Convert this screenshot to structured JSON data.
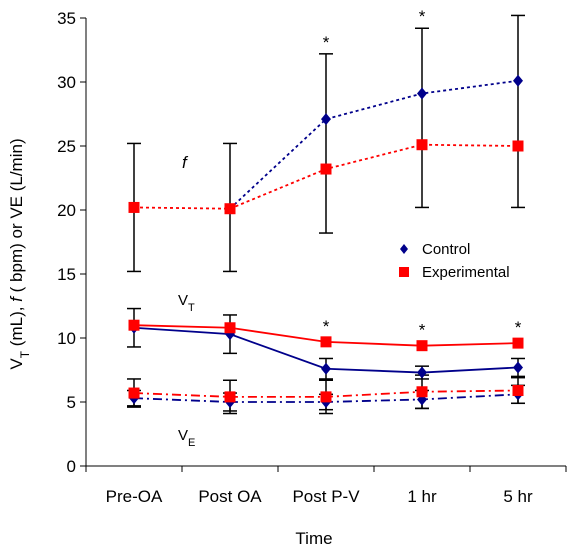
{
  "chart_data": {
    "type": "line",
    "title": "",
    "xlabel": "Time",
    "ylabel": "V_T (mL), f ( bpm) or VE (L/min)",
    "categories": [
      "Pre-OA",
      "Post OA",
      "Post P-V",
      "1 hr",
      "5 hr"
    ],
    "ylim": [
      0,
      35
    ],
    "yticks": [
      0,
      5,
      10,
      15,
      20,
      25,
      30,
      35
    ],
    "legend": {
      "position": "right-middle",
      "entries": [
        "Control",
        "Experimental"
      ]
    },
    "colors": {
      "Control": "#00008B",
      "Experimental": "#FF0000"
    },
    "grid": false,
    "annotations": {
      "f_label": "f",
      "vt_label": {
        "main": "V",
        "sub": "T"
      },
      "ve_label": {
        "main": "V",
        "sub": "E"
      },
      "star": "*"
    },
    "series": [
      {
        "name": "Control",
        "variable": "f",
        "marker": "diamond",
        "line": "dotted",
        "color": "#00008B",
        "values": [
          null,
          20.1,
          27.1,
          29.1,
          30.1
        ],
        "error": [
          null,
          null,
          null,
          null,
          null
        ]
      },
      {
        "name": "Experimental",
        "variable": "f",
        "marker": "square",
        "line": "dotted",
        "color": "#FF0000",
        "values": [
          20.2,
          20.1,
          23.2,
          25.1,
          25.0
        ],
        "error": [
          5.0,
          5.0,
          5.0,
          5.0,
          5.0
        ]
      },
      {
        "name": "Control",
        "variable": "VT",
        "marker": "diamond",
        "line": "solid",
        "color": "#00008B",
        "values": [
          10.8,
          10.3,
          7.6,
          7.3,
          7.7
        ],
        "error": [
          1.5,
          1.5,
          0.8,
          0.5,
          0.7
        ]
      },
      {
        "name": "Experimental",
        "variable": "VT",
        "marker": "square",
        "line": "solid",
        "color": "#FF0000",
        "values": [
          11.0,
          10.8,
          9.7,
          9.4,
          9.6
        ],
        "error": [
          0,
          0,
          0,
          0,
          0
        ]
      },
      {
        "name": "Control",
        "variable": "VE",
        "marker": "diamond",
        "line": "dashdot",
        "color": "#00008B",
        "values": [
          5.3,
          5.0,
          5.0,
          5.2,
          5.6
        ],
        "error": [
          0.6,
          0.7,
          0.6,
          0.7,
          0.7
        ]
      },
      {
        "name": "Experimental",
        "variable": "VE",
        "marker": "square",
        "line": "dashdot",
        "color": "#FF0000",
        "values": [
          5.7,
          5.4,
          5.4,
          5.8,
          5.9
        ],
        "error": [
          1.1,
          1.3,
          1.3,
          1.3,
          1.0
        ]
      }
    ],
    "error_bars_f": {
      "low": [
        15.2,
        15.2,
        18.2,
        20.2,
        20.2
      ],
      "high": [
        25.2,
        25.2,
        32.2,
        34.2,
        35.2
      ]
    },
    "significance": {
      "f": [
        false,
        false,
        true,
        true,
        false
      ],
      "VT": [
        false,
        false,
        true,
        true,
        true
      ]
    }
  }
}
